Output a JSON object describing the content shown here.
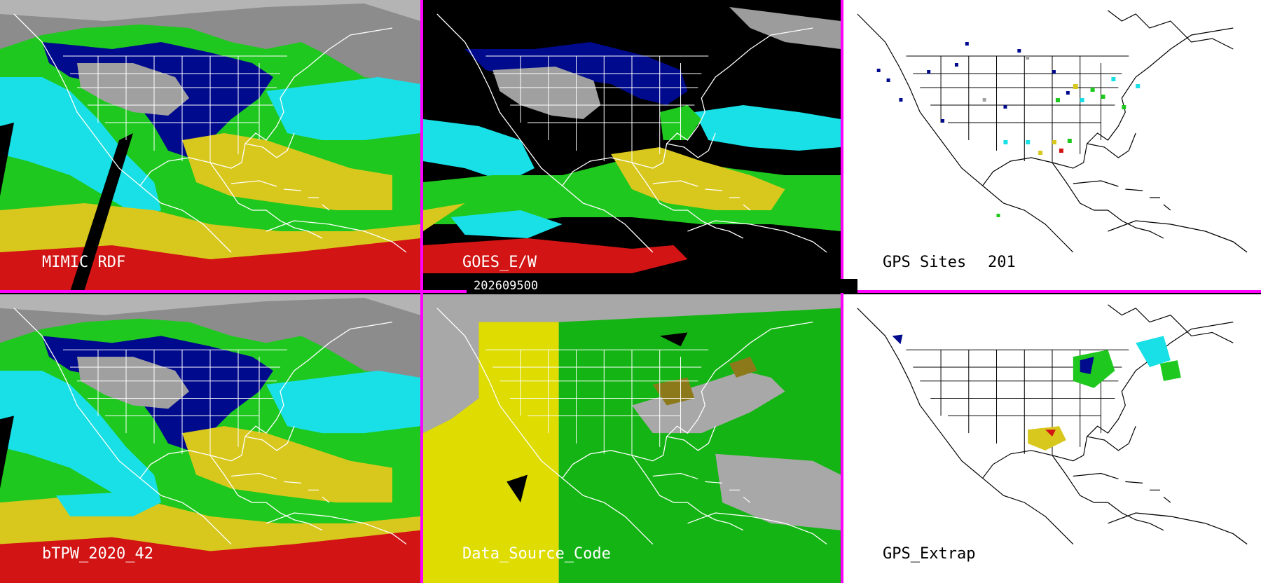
{
  "timestamp": "202609500",
  "panels": {
    "top_left": {
      "label": "MIMIC RDF"
    },
    "top_mid": {
      "label": "GOES_E/W"
    },
    "top_right": {
      "label": "GPS Sites",
      "count": "201"
    },
    "bot_left": {
      "label": "bTPW_2020_42"
    },
    "bot_mid": {
      "label": "Data_Source_Code"
    },
    "bot_right": {
      "label": "GPS_Extrap"
    }
  },
  "colors": {
    "divider": "#ff00ff",
    "tpw_dry": "#9a9a9a",
    "tpw_navy": "#000a8c",
    "tpw_cyan": "#19e0e6",
    "tpw_green": "#1fc81f",
    "tpw_yellow": "#d8c81e",
    "tpw_red": "#d21414",
    "src_yellow": "#dedc00",
    "src_green": "#14b414",
    "src_grey": "#a8a8a8"
  }
}
